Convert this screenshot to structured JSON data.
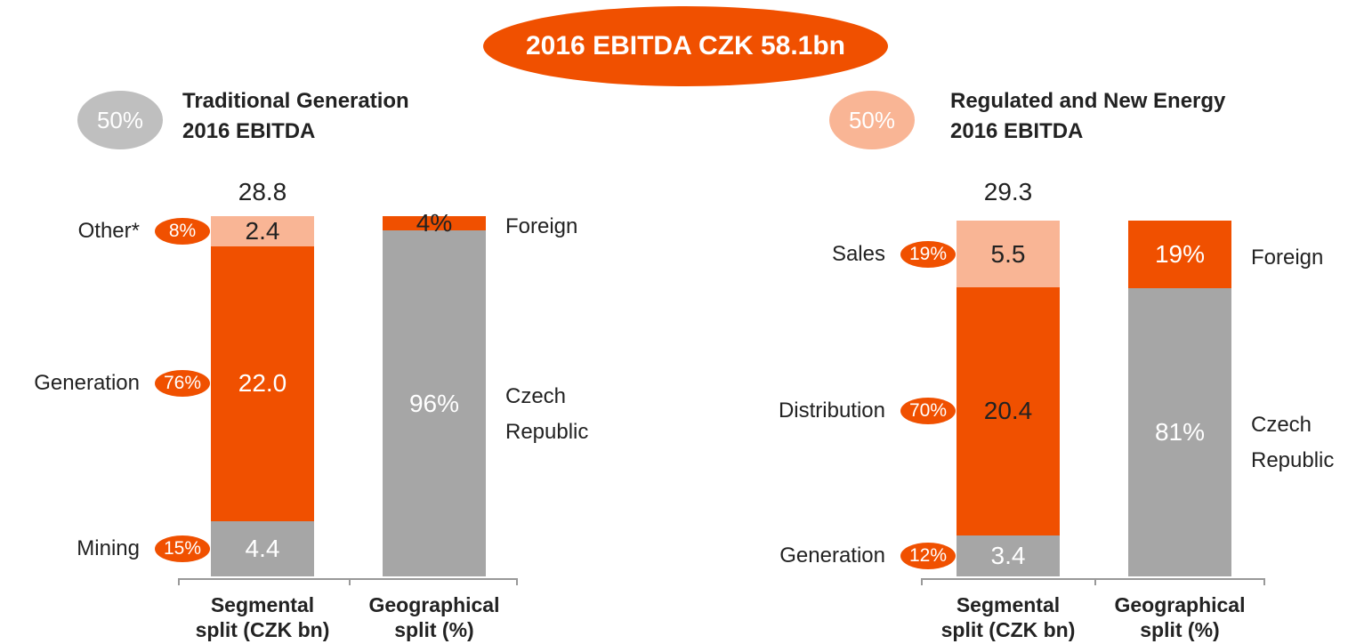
{
  "banner": "2016 EBITDA CZK 58.1bn",
  "chart_data": [
    {
      "type": "stacked_bar",
      "share": 50,
      "share_label": "50%",
      "share_color": "#bfbfbf",
      "title": [
        "Traditional Generation",
        "2016 EBITDA"
      ],
      "total": 28.8,
      "categories": [
        [
          "Segmental",
          "split (CZK bn)"
        ],
        [
          "Geographical",
          "split (%)"
        ]
      ],
      "segments": {
        "names": [
          "Mining",
          "Generation",
          "Other*"
        ],
        "values": [
          4.4,
          22.0,
          2.4
        ],
        "value_labels": [
          "4.4",
          "22.0",
          "2.4"
        ],
        "shares": [
          15,
          76,
          8
        ],
        "share_labels": [
          "15%",
          "76%",
          "8%"
        ],
        "colors": [
          "#a6a6a6",
          "#f05000",
          "#f9b595"
        ],
        "label_colors": [
          "#ffffff",
          "#ffffff",
          "#222222"
        ]
      },
      "geography": {
        "names": [
          "Czech Republic",
          "Foreign"
        ],
        "values": [
          96,
          4
        ],
        "value_labels": [
          "96%",
          "4%"
        ],
        "colors": [
          "#a6a6a6",
          "#f05000"
        ],
        "label_colors": [
          "#ffffff",
          "#222222"
        ]
      }
    },
    {
      "type": "stacked_bar",
      "share": 50,
      "share_label": "50%",
      "share_color": "#f9b595",
      "title": [
        "Regulated and New Energy",
        "2016 EBITDA"
      ],
      "total": 29.3,
      "categories": [
        [
          "Segmental",
          "split (CZK bn)"
        ],
        [
          "Geographical",
          "split (%)"
        ]
      ],
      "segments": {
        "names": [
          "Generation",
          "Distribution",
          "Sales"
        ],
        "values": [
          3.4,
          20.4,
          5.5
        ],
        "value_labels": [
          "3.4",
          "20.4",
          "5.5"
        ],
        "shares": [
          12,
          70,
          19
        ],
        "share_labels": [
          "12%",
          "70%",
          "19%"
        ],
        "colors": [
          "#a6a6a6",
          "#f05000",
          "#f9b595"
        ],
        "label_colors": [
          "#ffffff",
          "#222222",
          "#222222"
        ]
      },
      "geography": {
        "names": [
          "Czech Republic",
          "Foreign"
        ],
        "values": [
          81,
          19
        ],
        "value_labels": [
          "81%",
          "19%"
        ],
        "colors": [
          "#a6a6a6",
          "#f05000"
        ],
        "label_colors": [
          "#ffffff",
          "#ffffff"
        ]
      }
    }
  ]
}
